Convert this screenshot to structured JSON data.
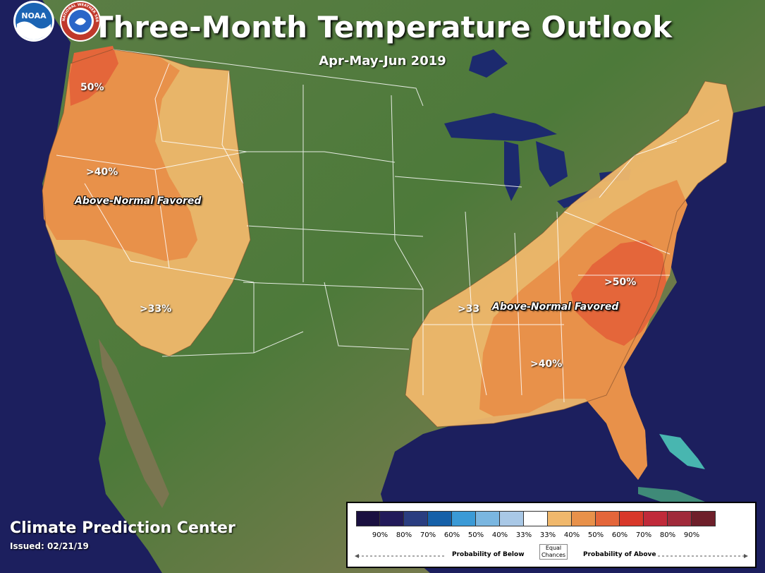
{
  "title": "Three-Month Temperature Outlook",
  "subtitle": "Apr-May-Jun 2019",
  "labels": {
    "west_50": "50%",
    "west_40": ">40%",
    "west_33": ">33%",
    "east_50": ">50%",
    "east_40": ">40%",
    "east_33": ">33"
  },
  "regions": {
    "west": "Above-Normal Favored",
    "east": "Above-Normal Favored"
  },
  "footer": {
    "center": "Climate Prediction Center",
    "issued": "Issued: 02/21/19"
  },
  "logos": [
    "noaa-logo",
    "national-weather-service-logo"
  ],
  "logo_text": {
    "noaa": "NOAA",
    "nws": "NATIONAL WEATHER SERVICE"
  },
  "legend": {
    "ticks": [
      "90%",
      "80%",
      "70%",
      "60%",
      "50%",
      "40%",
      "33%",
      "33%",
      "40%",
      "50%",
      "60%",
      "70%",
      "80%",
      "90%"
    ],
    "colors": [
      "#1a1040",
      "#221a5a",
      "#2a3d80",
      "#1560a8",
      "#3b9ad6",
      "#7ab6e0",
      "#a9c8e6",
      "#ffffff",
      "#f0b86c",
      "#e8914a",
      "#e4663a",
      "#d8382a",
      "#c02a3a",
      "#a02a3a",
      "#6e1f2a"
    ],
    "below": "Probability of Below",
    "equal": "Equal Chances",
    "above": "Probability of Above"
  },
  "colors": {
    "ocean": "#1c1f5e",
    "land": "#4d7a3a",
    "above_33": "#f0b86c",
    "above_40": "#e8914a",
    "above_50": "#e4663a"
  }
}
